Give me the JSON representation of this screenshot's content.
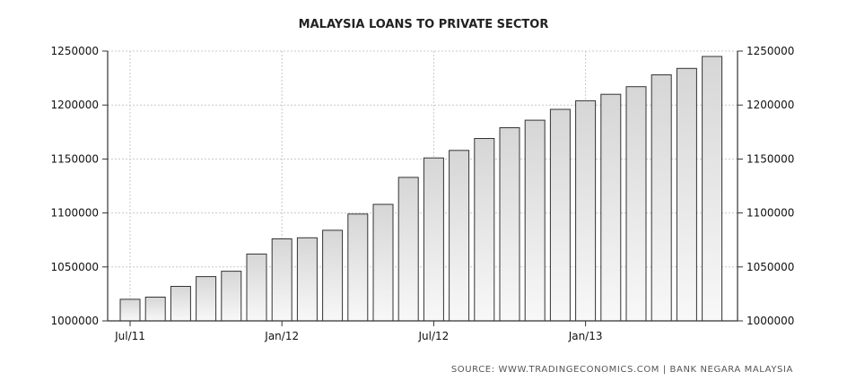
{
  "chart_data": {
    "type": "bar",
    "title": "MALAYSIA LOANS TO PRIVATE SECTOR",
    "source": "SOURCE: WWW.TRADINGECONOMICS.COM  |  BANK NEGARA MALAYSIA",
    "xlabel": "",
    "ylabel": "",
    "ylim": [
      1000000,
      1250000
    ],
    "yticks": [
      1000000,
      1050000,
      1100000,
      1150000,
      1200000,
      1250000
    ],
    "ytick_labels": [
      "1000000",
      "1050000",
      "1100000",
      "1150000",
      "1200000",
      "1250000"
    ],
    "x_tick_labels": [
      {
        "index": 0,
        "label": "Jul/11"
      },
      {
        "index": 6,
        "label": "Jan/12"
      },
      {
        "index": 12,
        "label": "Jul/12"
      },
      {
        "index": 18,
        "label": "Jan/13"
      }
    ],
    "categories": [
      "Jul/11",
      "Aug/11",
      "Sep/11",
      "Oct/11",
      "Nov/11",
      "Dec/11",
      "Jan/12",
      "Feb/12",
      "Mar/12",
      "Apr/12",
      "May/12",
      "Jun/12",
      "Jul/12",
      "Aug/12",
      "Sep/12",
      "Oct/12",
      "Nov/12",
      "Dec/12",
      "Jan/13",
      "Feb/13",
      "Mar/13",
      "Apr/13",
      "May/13",
      "Jun/13"
    ],
    "values": [
      1020000,
      1022000,
      1032000,
      1041000,
      1046000,
      1062000,
      1076000,
      1077000,
      1084000,
      1099000,
      1108000,
      1133000,
      1151000,
      1158000,
      1169000,
      1179000,
      1186000,
      1196000,
      1204000,
      1210000,
      1217000,
      1228000,
      1234000,
      1245000
    ],
    "grid": true,
    "y_axis_sides": [
      "left",
      "right"
    ],
    "bar_fill": "gradient gray",
    "bar_stroke": "#333333"
  }
}
